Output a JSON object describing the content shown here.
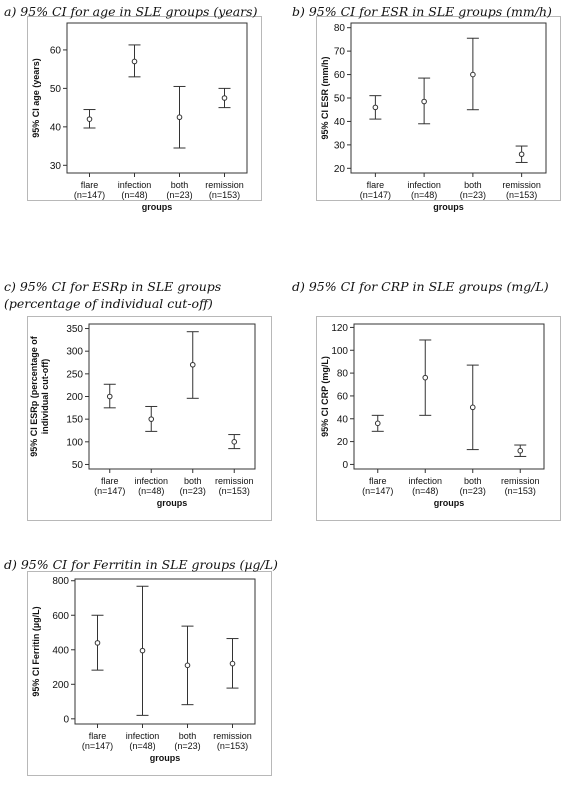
{
  "chart_data": [
    {
      "type": "errorbar",
      "title_lines": [
        "a) 95% CI for age in SLE groups (years)"
      ],
      "ylabel_lines": [
        "95% CI age (years)"
      ],
      "xlabel": "groups",
      "categories": [
        {
          "name": "flare",
          "n": "(n=147)"
        },
        {
          "name": "infection",
          "n": "(n=48)"
        },
        {
          "name": "both",
          "n": "(n=23)"
        },
        {
          "name": "remission",
          "n": "(n=153)"
        }
      ],
      "yticks": [
        30,
        40,
        50,
        60
      ],
      "ylim": [
        28,
        67
      ],
      "series": [
        {
          "mean": 42,
          "lower": 39.7,
          "upper": 44.5
        },
        {
          "mean": 57,
          "lower": 53,
          "upper": 61.3
        },
        {
          "mean": 42.5,
          "lower": 34.5,
          "upper": 50.5
        },
        {
          "mean": 47.5,
          "lower": 45,
          "upper": 50
        }
      ]
    },
    {
      "type": "errorbar",
      "title_lines": [
        "b) 95% CI for ESR in SLE groups (mm/h)"
      ],
      "ylabel_lines": [
        "95% CI ESR (mm/h)"
      ],
      "xlabel": "groups",
      "categories": [
        {
          "name": "flare",
          "n": "(n=147)"
        },
        {
          "name": "infection",
          "n": "(n=48)"
        },
        {
          "name": "both",
          "n": "(n=23)"
        },
        {
          "name": "remission",
          "n": "(n=153)"
        }
      ],
      "yticks": [
        20,
        30,
        40,
        50,
        60,
        70,
        80
      ],
      "ylim": [
        18,
        82
      ],
      "series": [
        {
          "mean": 46,
          "lower": 41,
          "upper": 51
        },
        {
          "mean": 48.5,
          "lower": 39,
          "upper": 58.5
        },
        {
          "mean": 60,
          "lower": 45,
          "upper": 75.5
        },
        {
          "mean": 26,
          "lower": 22.5,
          "upper": 29.5
        }
      ]
    },
    {
      "type": "errorbar",
      "title_lines": [
        "c) 95% CI for ESRp in SLE groups",
        "(percentage of individual cut-off)"
      ],
      "ylabel_lines": [
        "95% CI ESRp (percentage of",
        "individual cut-off)"
      ],
      "xlabel": "groups",
      "categories": [
        {
          "name": "flare",
          "n": "(n=147)"
        },
        {
          "name": "infection",
          "n": "(n=48)"
        },
        {
          "name": "both",
          "n": "(n=23)"
        },
        {
          "name": "remission",
          "n": "(n=153)"
        }
      ],
      "yticks": [
        50,
        100,
        150,
        200,
        250,
        300,
        350
      ],
      "ylim": [
        40,
        360
      ],
      "series": [
        {
          "mean": 200,
          "lower": 175,
          "upper": 227
        },
        {
          "mean": 150,
          "lower": 123,
          "upper": 178
        },
        {
          "mean": 270,
          "lower": 196,
          "upper": 343
        },
        {
          "mean": 100,
          "lower": 85,
          "upper": 116
        }
      ]
    },
    {
      "type": "errorbar",
      "title_lines": [
        "d) 95% CI for CRP in SLE groups (mg/L)"
      ],
      "ylabel_lines": [
        "95% CI CRP (mg/L)"
      ],
      "xlabel": "groups",
      "categories": [
        {
          "name": "flare",
          "n": "(n=147)"
        },
        {
          "name": "infection",
          "n": "(n=48)"
        },
        {
          "name": "both",
          "n": "(n=23)"
        },
        {
          "name": "remission",
          "n": "(n=153)"
        }
      ],
      "yticks": [
        0,
        20,
        40,
        60,
        80,
        100,
        120
      ],
      "ylim": [
        -4,
        123
      ],
      "series": [
        {
          "mean": 36,
          "lower": 29,
          "upper": 43
        },
        {
          "mean": 76,
          "lower": 43,
          "upper": 109
        },
        {
          "mean": 50,
          "lower": 13,
          "upper": 87
        },
        {
          "mean": 12,
          "lower": 7,
          "upper": 17
        }
      ]
    },
    {
      "type": "errorbar",
      "title_lines": [
        "d) 95% CI for Ferritin in SLE groups (µg/L)"
      ],
      "ylabel_lines": [
        "95% CI Ferritin (µg/L)"
      ],
      "xlabel": "groups",
      "categories": [
        {
          "name": "flare",
          "n": "(n=147)"
        },
        {
          "name": "infection",
          "n": "(n=48)"
        },
        {
          "name": "both",
          "n": "(n=23)"
        },
        {
          "name": "remission",
          "n": "(n=153)"
        }
      ],
      "yticks": [
        0,
        200,
        400,
        600,
        800
      ],
      "ylim": [
        -30,
        810
      ],
      "series": [
        {
          "mean": 440,
          "lower": 282,
          "upper": 600
        },
        {
          "mean": 395,
          "lower": 20,
          "upper": 768
        },
        {
          "mean": 310,
          "lower": 82,
          "upper": 537
        },
        {
          "mean": 320,
          "lower": 178,
          "upper": 465
        }
      ]
    }
  ]
}
